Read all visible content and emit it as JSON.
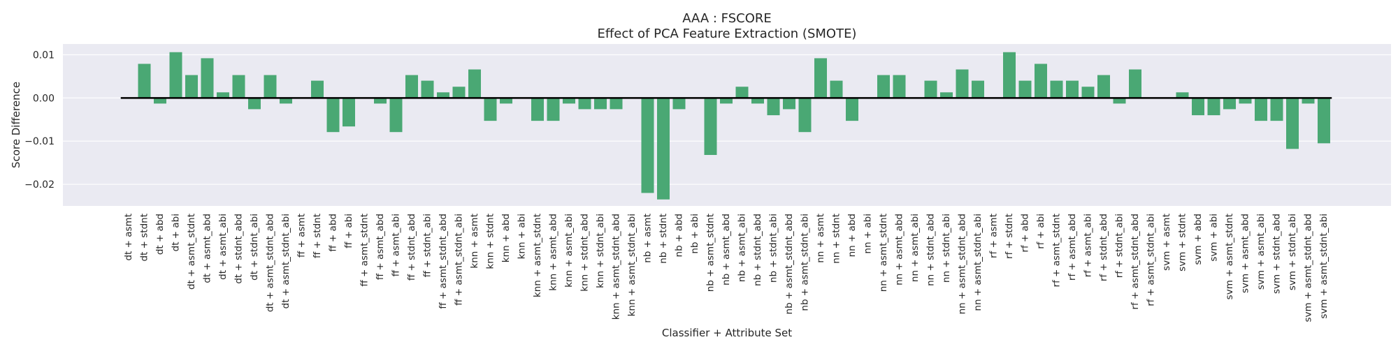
{
  "colors": {
    "bar": "#4aa874",
    "plot_bg": "#eaeaf2",
    "grid": "#ffffff",
    "zero_line": "#000000",
    "text": "#262626"
  },
  "chart_data": {
    "type": "bar",
    "title_lines": [
      "AAA : FSCORE",
      "Effect of PCA Feature Extraction (SMOTE)"
    ],
    "xlabel": "Classifier + Attribute Set",
    "ylabel": "Score Difference",
    "ylim": [
      -0.025,
      0.0125
    ],
    "yticks": [
      0.01,
      0.0,
      -0.01,
      -0.02
    ],
    "ytick_labels": [
      "0.01",
      "0.00",
      "−0.01",
      "−0.02"
    ],
    "grid": true,
    "reference_line": 0,
    "categories": [
      "dt + asmt",
      "dt + stdnt",
      "dt + abd",
      "dt + abi",
      "dt + asmt_stdnt",
      "dt + asmt_abd",
      "dt + asmt_abi",
      "dt + stdnt_abd",
      "dt + stdnt_abi",
      "dt + asmt_stdnt_abd",
      "dt + asmt_stdnt_abi",
      "ff + asmt",
      "ff + stdnt",
      "ff + abd",
      "ff + abi",
      "ff + asmt_stdnt",
      "ff + asmt_abd",
      "ff + asmt_abi",
      "ff + stdnt_abd",
      "ff + stdnt_abi",
      "ff + asmt_stdnt_abd",
      "ff + asmt_stdnt_abi",
      "knn + asmt",
      "knn + stdnt",
      "knn + abd",
      "knn + abi",
      "knn + asmt_stdnt",
      "knn + asmt_abd",
      "knn + asmt_abi",
      "knn + stdnt_abd",
      "knn + stdnt_abi",
      "knn + asmt_stdnt_abd",
      "knn + asmt_stdnt_abi",
      "nb + asmt",
      "nb + stdnt",
      "nb + abd",
      "nb + abi",
      "nb + asmt_stdnt",
      "nb + asmt_abd",
      "nb + asmt_abi",
      "nb + stdnt_abd",
      "nb + stdnt_abi",
      "nb + asmt_stdnt_abd",
      "nb + asmt_stdnt_abi",
      "nn + asmt",
      "nn + stdnt",
      "nn + abd",
      "nn + abi",
      "nn + asmt_stdnt",
      "nn + asmt_abd",
      "nn + asmt_abi",
      "nn + stdnt_abd",
      "nn + stdnt_abi",
      "nn + asmt_stdnt_abd",
      "nn + asmt_stdnt_abi",
      "rf + asmt",
      "rf + stdnt",
      "rf + abd",
      "rf + abi",
      "rf + asmt_stdnt",
      "rf + asmt_abd",
      "rf + asmt_abi",
      "rf + stdnt_abd",
      "rf + stdnt_abi",
      "rf + asmt_stdnt_abd",
      "rf + asmt_stdnt_abi",
      "svm + asmt",
      "svm + stdnt",
      "svm + abd",
      "svm + abi",
      "svm + asmt_stdnt",
      "svm + asmt_abd",
      "svm + asmt_abi",
      "svm + stdnt_abd",
      "svm + stdnt_abi",
      "svm + asmt_stdnt_abd",
      "svm + asmt_stdnt_abi"
    ],
    "values": [
      0.0,
      0.0079,
      -0.0013,
      0.0106,
      0.0053,
      0.0092,
      0.0013,
      0.0053,
      -0.0026,
      0.0053,
      -0.0013,
      0.0,
      0.004,
      -0.0079,
      -0.0066,
      0.0,
      -0.0013,
      -0.0079,
      0.0053,
      0.004,
      0.0013,
      0.0026,
      0.0066,
      -0.0053,
      -0.0013,
      0.0,
      -0.0053,
      -0.0053,
      -0.0013,
      -0.0026,
      -0.0026,
      -0.0026,
      0.0,
      -0.022,
      -0.0235,
      -0.0026,
      0.0,
      -0.0132,
      -0.0013,
      0.0026,
      -0.0013,
      -0.004,
      -0.0026,
      -0.0079,
      0.0092,
      0.004,
      -0.0053,
      0.0,
      0.0053,
      0.0053,
      0.0,
      0.004,
      0.0013,
      0.0066,
      0.004,
      0.0,
      0.0106,
      0.004,
      0.0079,
      0.004,
      0.004,
      0.0026,
      0.0053,
      -0.0013,
      0.0066,
      0.0,
      0.0,
      0.0013,
      -0.004,
      -0.004,
      -0.0026,
      -0.0013,
      -0.0053,
      -0.0053,
      -0.0118,
      -0.0013,
      -0.0105
    ]
  }
}
